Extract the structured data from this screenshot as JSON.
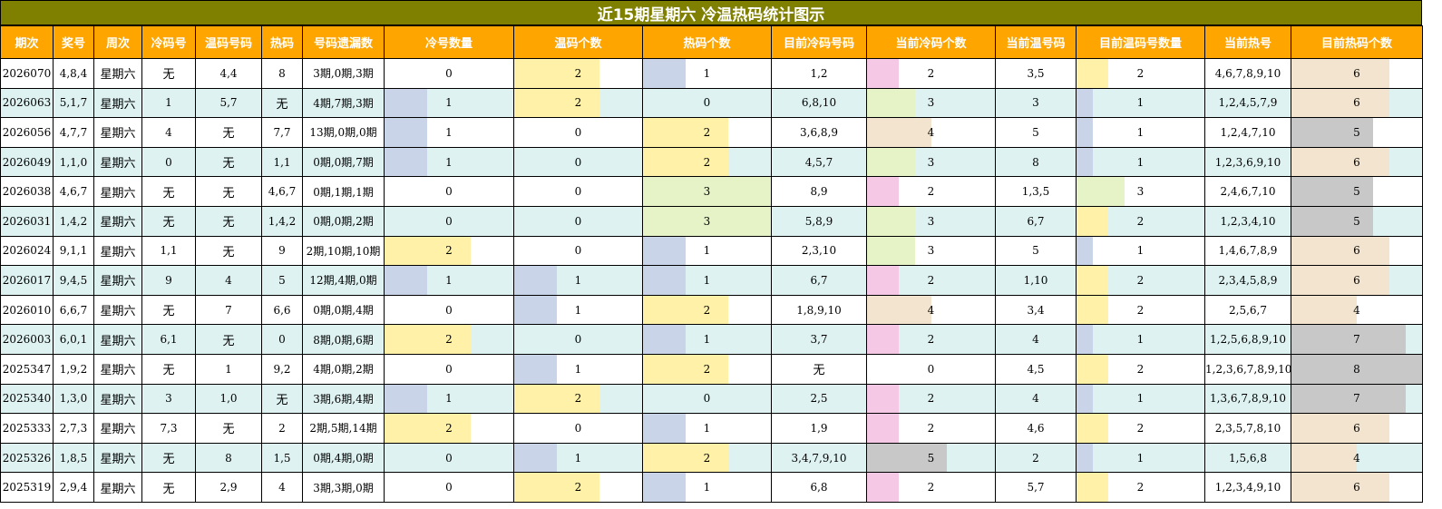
{
  "title": "近15期星期六 冷温热码统计图示",
  "columns": [
    "期次",
    "奖号",
    "周次",
    "冷码号",
    "温码号码",
    "热码",
    "号码遗漏数",
    "冷号数量",
    "温码个数",
    "热码个数",
    "目前冷码号码",
    "当前冷码个数",
    "当前温号码",
    "目前温码号数量",
    "当前热号",
    "目前热码个数"
  ],
  "colors": {
    "1": "#c9d4e8",
    "2": "#fff2a8",
    "3": "#e5f3c7",
    "4": "#f2e4cf",
    "5": "#c8c8c8",
    "6": "#f2e4cf",
    "7": "#c8c8c8",
    "8": "#c8c8c8",
    "pink": "#f5c9e5"
  },
  "rows": [
    {
      "issue": "2026070",
      "nums": "4,8,4",
      "week": "星期六",
      "cold": "无",
      "warm": "4,4",
      "hot": "8",
      "miss": "3期,0期,3期",
      "cold_cnt": 0,
      "warm_cnt": 2,
      "hot_cnt": 1,
      "cur_cold": "1,2",
      "cur_cold_cnt": 2,
      "cur_warm": "3,5",
      "cur_warm_cnt": 2,
      "cur_hot": "4,6,7,8,9,10",
      "cur_hot_cnt": 6
    },
    {
      "issue": "2026063",
      "nums": "5,1,7",
      "week": "星期六",
      "cold": "1",
      "warm": "5,7",
      "hot": "无",
      "miss": "4期,7期,3期",
      "cold_cnt": 1,
      "warm_cnt": 2,
      "hot_cnt": 0,
      "cur_cold": "6,8,10",
      "cur_cold_cnt": 3,
      "cur_warm": "3",
      "cur_warm_cnt": 1,
      "cur_hot": "1,2,4,5,7,9",
      "cur_hot_cnt": 6
    },
    {
      "issue": "2026056",
      "nums": "4,7,7",
      "week": "星期六",
      "cold": "4",
      "warm": "无",
      "hot": "7,7",
      "miss": "13期,0期,0期",
      "cold_cnt": 1,
      "warm_cnt": 0,
      "hot_cnt": 2,
      "cur_cold": "3,6,8,9",
      "cur_cold_cnt": 4,
      "cur_warm": "5",
      "cur_warm_cnt": 1,
      "cur_hot": "1,2,4,7,10",
      "cur_hot_cnt": 5
    },
    {
      "issue": "2026049",
      "nums": "1,1,0",
      "week": "星期六",
      "cold": "0",
      "warm": "无",
      "hot": "1,1",
      "miss": "0期,0期,7期",
      "cold_cnt": 1,
      "warm_cnt": 0,
      "hot_cnt": 2,
      "cur_cold": "4,5,7",
      "cur_cold_cnt": 3,
      "cur_warm": "8",
      "cur_warm_cnt": 1,
      "cur_hot": "1,2,3,6,9,10",
      "cur_hot_cnt": 6
    },
    {
      "issue": "2026038",
      "nums": "4,6,7",
      "week": "星期六",
      "cold": "无",
      "warm": "无",
      "hot": "4,6,7",
      "miss": "0期,1期,1期",
      "cold_cnt": 0,
      "warm_cnt": 0,
      "hot_cnt": 3,
      "cur_cold": "8,9",
      "cur_cold_cnt": 2,
      "cur_warm": "1,3,5",
      "cur_warm_cnt": 3,
      "cur_hot": "2,4,6,7,10",
      "cur_hot_cnt": 5
    },
    {
      "issue": "2026031",
      "nums": "1,4,2",
      "week": "星期六",
      "cold": "无",
      "warm": "无",
      "hot": "1,4,2",
      "miss": "0期,0期,2期",
      "cold_cnt": 0,
      "warm_cnt": 0,
      "hot_cnt": 3,
      "cur_cold": "5,8,9",
      "cur_cold_cnt": 3,
      "cur_warm": "6,7",
      "cur_warm_cnt": 2,
      "cur_hot": "1,2,3,4,10",
      "cur_hot_cnt": 5
    },
    {
      "issue": "2026024",
      "nums": "9,1,1",
      "week": "星期六",
      "cold": "1,1",
      "warm": "无",
      "hot": "9",
      "miss": "2期,10期,10期",
      "cold_cnt": 2,
      "warm_cnt": 0,
      "hot_cnt": 1,
      "cur_cold": "2,3,10",
      "cur_cold_cnt": 3,
      "cur_warm": "5",
      "cur_warm_cnt": 1,
      "cur_hot": "1,4,6,7,8,9",
      "cur_hot_cnt": 6
    },
    {
      "issue": "2026017",
      "nums": "9,4,5",
      "week": "星期六",
      "cold": "9",
      "warm": "4",
      "hot": "5",
      "miss": "12期,4期,0期",
      "cold_cnt": 1,
      "warm_cnt": 1,
      "hot_cnt": 1,
      "cur_cold": "6,7",
      "cur_cold_cnt": 2,
      "cur_warm": "1,10",
      "cur_warm_cnt": 2,
      "cur_hot": "2,3,4,5,8,9",
      "cur_hot_cnt": 6
    },
    {
      "issue": "2026010",
      "nums": "6,6,7",
      "week": "星期六",
      "cold": "无",
      "warm": "7",
      "hot": "6,6",
      "miss": "0期,0期,4期",
      "cold_cnt": 0,
      "warm_cnt": 1,
      "hot_cnt": 2,
      "cur_cold": "1,8,9,10",
      "cur_cold_cnt": 4,
      "cur_warm": "3,4",
      "cur_warm_cnt": 2,
      "cur_hot": "2,5,6,7",
      "cur_hot_cnt": 4
    },
    {
      "issue": "2026003",
      "nums": "6,0,1",
      "week": "星期六",
      "cold": "6,1",
      "warm": "无",
      "hot": "0",
      "miss": "8期,0期,6期",
      "cold_cnt": 2,
      "warm_cnt": 0,
      "hot_cnt": 1,
      "cur_cold": "3,7",
      "cur_cold_cnt": 2,
      "cur_warm": "4",
      "cur_warm_cnt": 1,
      "cur_hot": "1,2,5,6,8,9,10",
      "cur_hot_cnt": 7
    },
    {
      "issue": "2025347",
      "nums": "1,9,2",
      "week": "星期六",
      "cold": "无",
      "warm": "1",
      "hot": "9,2",
      "miss": "4期,0期,2期",
      "cold_cnt": 0,
      "warm_cnt": 1,
      "hot_cnt": 2,
      "cur_cold": "无",
      "cur_cold_cnt": 0,
      "cur_warm": "4,5",
      "cur_warm_cnt": 2,
      "cur_hot": "1,2,3,6,7,8,9,10",
      "cur_hot_cnt": 8
    },
    {
      "issue": "2025340",
      "nums": "1,3,0",
      "week": "星期六",
      "cold": "3",
      "warm": "1,0",
      "hot": "无",
      "miss": "3期,6期,4期",
      "cold_cnt": 1,
      "warm_cnt": 2,
      "hot_cnt": 0,
      "cur_cold": "2,5",
      "cur_cold_cnt": 2,
      "cur_warm": "4",
      "cur_warm_cnt": 1,
      "cur_hot": "1,3,6,7,8,9,10",
      "cur_hot_cnt": 7
    },
    {
      "issue": "2025333",
      "nums": "2,7,3",
      "week": "星期六",
      "cold": "7,3",
      "warm": "无",
      "hot": "2",
      "miss": "2期,5期,14期",
      "cold_cnt": 2,
      "warm_cnt": 0,
      "hot_cnt": 1,
      "cur_cold": "1,9",
      "cur_cold_cnt": 2,
      "cur_warm": "4,6",
      "cur_warm_cnt": 2,
      "cur_hot": "2,3,5,7,8,10",
      "cur_hot_cnt": 6
    },
    {
      "issue": "2025326",
      "nums": "1,8,5",
      "week": "星期六",
      "cold": "无",
      "warm": "8",
      "hot": "1,5",
      "miss": "0期,4期,0期",
      "cold_cnt": 0,
      "warm_cnt": 1,
      "hot_cnt": 2,
      "cur_cold": "3,4,7,9,10",
      "cur_cold_cnt": 5,
      "cur_warm": "2",
      "cur_warm_cnt": 1,
      "cur_hot": "1,5,6,8",
      "cur_hot_cnt": 4
    },
    {
      "issue": "2025319",
      "nums": "2,9,4",
      "week": "星期六",
      "cold": "无",
      "warm": "2,9",
      "hot": "4",
      "miss": "3期,3期,0期",
      "cold_cnt": 0,
      "warm_cnt": 2,
      "hot_cnt": 1,
      "cur_cold": "6,8",
      "cur_cold_cnt": 2,
      "cur_warm": "5,7",
      "cur_warm_cnt": 2,
      "cur_hot": "1,2,3,4,9,10",
      "cur_hot_cnt": 6
    }
  ]
}
